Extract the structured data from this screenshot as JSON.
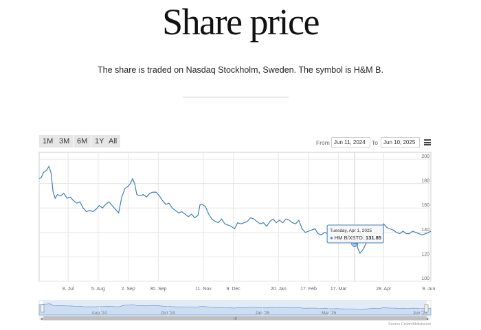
{
  "page": {
    "title": "Share price",
    "subtitle": "The share is traded on Nasdaq Stockholm, Sweden. The symbol is H&M B."
  },
  "range_selector": {
    "buttons": [
      "1M",
      "3M",
      "6M",
      "1Y",
      "All"
    ]
  },
  "date_range": {
    "from_label": "From",
    "from_value": "Jun 11, 2024",
    "to_label": "To",
    "to_value": "Jun 10, 2025"
  },
  "menu_icon": "hamburger-menu-icon",
  "chart_data": {
    "type": "line",
    "title": "Share price",
    "series": [
      {
        "name": "HM B/XSTO",
        "color": "#3b7dbf"
      }
    ],
    "x_start": "Jun 11, 2024",
    "x_end": "Jun 10, 2025",
    "ylim": [
      100,
      200
    ],
    "y_ticks": [
      "100",
      "120",
      "140",
      "160",
      "180",
      "200"
    ],
    "x_ticks": [
      {
        "label": "8. Jul",
        "day": 27
      },
      {
        "label": "5. Aug",
        "day": 55
      },
      {
        "label": "2. Sep",
        "day": 83
      },
      {
        "label": "30. Sep",
        "day": 111
      },
      {
        "label": "11. Nov",
        "day": 153
      },
      {
        "label": "9. Dec",
        "day": 181
      },
      {
        "label": "20. Jan",
        "day": 223
      },
      {
        "label": "17. Feb",
        "day": 251
      },
      {
        "label": "17. Mar",
        "day": 279
      },
      {
        "label": "28. Apr",
        "day": 321
      },
      {
        "label": "9. Jun",
        "day": 363
      }
    ],
    "points": [
      [
        0,
        184
      ],
      [
        2,
        185
      ],
      [
        4,
        189
      ],
      [
        7,
        191
      ],
      [
        9,
        194
      ],
      [
        11,
        189
      ],
      [
        13,
        173
      ],
      [
        15,
        168
      ],
      [
        17,
        171
      ],
      [
        20,
        170
      ],
      [
        23,
        172
      ],
      [
        26,
        168
      ],
      [
        29,
        169
      ],
      [
        32,
        166
      ],
      [
        35,
        164
      ],
      [
        38,
        165
      ],
      [
        41,
        160
      ],
      [
        44,
        157
      ],
      [
        47,
        158
      ],
      [
        50,
        157
      ],
      [
        53,
        159
      ],
      [
        56,
        162
      ],
      [
        59,
        160
      ],
      [
        62,
        163
      ],
      [
        65,
        165
      ],
      [
        68,
        162
      ],
      [
        71,
        159
      ],
      [
        74,
        156
      ],
      [
        77,
        169
      ],
      [
        80,
        176
      ],
      [
        83,
        178
      ],
      [
        85,
        180
      ],
      [
        87,
        184
      ],
      [
        89,
        180
      ],
      [
        91,
        171
      ],
      [
        94,
        170
      ],
      [
        97,
        171
      ],
      [
        100,
        169
      ],
      [
        103,
        172
      ],
      [
        106,
        173
      ],
      [
        109,
        173
      ],
      [
        112,
        170
      ],
      [
        115,
        166
      ],
      [
        118,
        163
      ],
      [
        121,
        164
      ],
      [
        124,
        160
      ],
      [
        127,
        158
      ],
      [
        130,
        156
      ],
      [
        133,
        157
      ],
      [
        136,
        155
      ],
      [
        139,
        153
      ],
      [
        142,
        155
      ],
      [
        145,
        152
      ],
      [
        148,
        154
      ],
      [
        150,
        163
      ],
      [
        152,
        163
      ],
      [
        155,
        161
      ],
      [
        158,
        155
      ],
      [
        161,
        151
      ],
      [
        164,
        149
      ],
      [
        167,
        148
      ],
      [
        170,
        151
      ],
      [
        173,
        147
      ],
      [
        176,
        146
      ],
      [
        179,
        145
      ],
      [
        182,
        143
      ],
      [
        185,
        148
      ],
      [
        188,
        147
      ],
      [
        191,
        148
      ],
      [
        194,
        149
      ],
      [
        197,
        152
      ],
      [
        200,
        151
      ],
      [
        203,
        149
      ],
      [
        206,
        147
      ],
      [
        209,
        148
      ],
      [
        212,
        145
      ],
      [
        215,
        149
      ],
      [
        218,
        151
      ],
      [
        221,
        148
      ],
      [
        224,
        150
      ],
      [
        227,
        148
      ],
      [
        230,
        151
      ],
      [
        233,
        150
      ],
      [
        236,
        148
      ],
      [
        239,
        147
      ],
      [
        242,
        150
      ],
      [
        245,
        143
      ],
      [
        248,
        140
      ],
      [
        251,
        141
      ],
      [
        254,
        142
      ],
      [
        257,
        143
      ],
      [
        260,
        139
      ],
      [
        263,
        138
      ],
      [
        266,
        140
      ],
      [
        269,
        139
      ],
      [
        272,
        134
      ],
      [
        275,
        135
      ],
      [
        278,
        137
      ],
      [
        281,
        133
      ],
      [
        284,
        134
      ],
      [
        287,
        132
      ],
      [
        290,
        133
      ],
      [
        293,
        131
      ],
      [
        296,
        131
      ],
      [
        297,
        127
      ],
      [
        299,
        123
      ],
      [
        301,
        125
      ],
      [
        303,
        128
      ],
      [
        306,
        134
      ],
      [
        309,
        137
      ],
      [
        312,
        140
      ],
      [
        315,
        139
      ],
      [
        318,
        140
      ],
      [
        321,
        147
      ],
      [
        324,
        144
      ],
      [
        327,
        143
      ],
      [
        330,
        142
      ],
      [
        333,
        140
      ],
      [
        336,
        139
      ],
      [
        339,
        141
      ],
      [
        342,
        139
      ],
      [
        345,
        139
      ],
      [
        348,
        141
      ],
      [
        351,
        140
      ],
      [
        354,
        139
      ],
      [
        357,
        138
      ],
      [
        360,
        139
      ],
      [
        363,
        140
      ],
      [
        365,
        141
      ]
    ],
    "tooltip": {
      "date": "Tuesday, Apr 1, 2025",
      "series": "HM B/XSTO",
      "value": "131.85",
      "day": 294
    },
    "navigator": {
      "labels": [
        {
          "label": "Aug '24",
          "day": 56
        },
        {
          "label": "Oct '24",
          "day": 120
        },
        {
          "label": "Jan '25",
          "day": 208
        },
        {
          "label": "Mar '25",
          "day": 270
        },
        {
          "label": "Jun '25",
          "day": 355
        }
      ]
    },
    "credit": "Source Cision/Millistream"
  }
}
